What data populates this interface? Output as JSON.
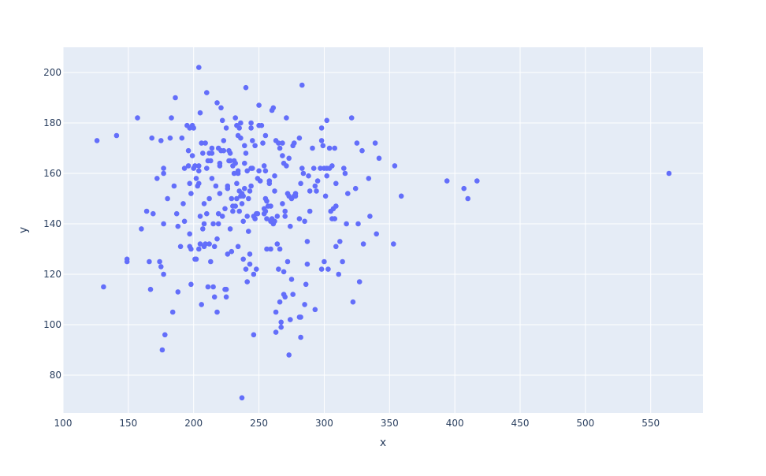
{
  "chart_data": {
    "type": "scatter",
    "xlabel": "x",
    "ylabel": "y",
    "xlim": [
      100,
      590
    ],
    "ylim": [
      65,
      210
    ],
    "x_ticks": [
      100,
      150,
      200,
      250,
      300,
      350,
      400,
      450,
      500,
      550
    ],
    "y_ticks": [
      80,
      100,
      120,
      140,
      160,
      180,
      200
    ],
    "grid": true,
    "colors": {
      "marker": "#636efa",
      "plot_bg": "#e5ecf6",
      "grid": "#ffffff",
      "text": "#2a3f5f"
    },
    "points": [
      [
        126,
        173
      ],
      [
        131,
        115
      ],
      [
        141,
        175
      ],
      [
        149,
        126
      ],
      [
        149,
        125
      ],
      [
        157,
        182
      ],
      [
        160,
        138
      ],
      [
        164,
        145
      ],
      [
        166,
        125
      ],
      [
        167,
        114
      ],
      [
        168,
        174
      ],
      [
        169,
        144
      ],
      [
        172,
        158
      ],
      [
        174,
        125
      ],
      [
        175,
        123
      ],
      [
        175,
        173
      ],
      [
        176,
        90
      ],
      [
        177,
        140
      ],
      [
        177,
        160
      ],
      [
        177,
        162
      ],
      [
        177,
        120
      ],
      [
        178,
        96
      ],
      [
        180,
        150
      ],
      [
        182,
        174
      ],
      [
        183,
        182
      ],
      [
        184,
        105
      ],
      [
        185,
        155
      ],
      [
        186,
        190
      ],
      [
        187,
        144
      ],
      [
        188,
        113
      ],
      [
        188,
        139
      ],
      [
        190,
        131
      ],
      [
        191,
        174
      ],
      [
        192,
        148
      ],
      [
        193,
        162
      ],
      [
        193,
        141
      ],
      [
        195,
        179
      ],
      [
        196,
        163
      ],
      [
        196,
        169
      ],
      [
        197,
        136
      ],
      [
        197,
        178
      ],
      [
        197,
        156
      ],
      [
        197,
        131
      ],
      [
        198,
        152
      ],
      [
        198,
        116
      ],
      [
        198,
        130
      ],
      [
        199,
        167
      ],
      [
        199,
        179
      ],
      [
        200,
        178
      ],
      [
        200,
        162
      ],
      [
        201,
        163
      ],
      [
        201,
        126
      ],
      [
        202,
        158
      ],
      [
        202,
        126
      ],
      [
        203,
        155
      ],
      [
        204,
        161
      ],
      [
        204,
        163
      ],
      [
        204,
        202
      ],
      [
        204,
        130
      ],
      [
        204,
        156
      ],
      [
        205,
        132
      ],
      [
        205,
        143
      ],
      [
        205,
        184
      ],
      [
        206,
        108
      ],
      [
        206,
        172
      ],
      [
        207,
        168
      ],
      [
        207,
        138
      ],
      [
        208,
        131
      ],
      [
        208,
        148
      ],
      [
        208,
        140
      ],
      [
        209,
        132
      ],
      [
        209,
        172
      ],
      [
        210,
        192
      ],
      [
        210,
        162
      ],
      [
        210,
        144
      ],
      [
        211,
        165
      ],
      [
        211,
        115
      ],
      [
        212,
        168
      ],
      [
        212,
        150
      ],
      [
        212,
        132
      ],
      [
        213,
        125
      ],
      [
        213,
        165
      ],
      [
        214,
        158
      ],
      [
        214,
        168
      ],
      [
        214,
        170
      ],
      [
        215,
        140
      ],
      [
        215,
        115
      ],
      [
        216,
        131
      ],
      [
        216,
        111
      ],
      [
        217,
        155
      ],
      [
        218,
        105
      ],
      [
        218,
        188
      ],
      [
        218,
        134
      ],
      [
        219,
        170
      ],
      [
        219,
        144
      ],
      [
        219,
        140
      ],
      [
        220,
        163
      ],
      [
        220,
        164
      ],
      [
        220,
        152
      ],
      [
        221,
        186
      ],
      [
        221,
        169
      ],
      [
        222,
        143
      ],
      [
        222,
        181
      ],
      [
        223,
        173
      ],
      [
        223,
        169
      ],
      [
        224,
        146
      ],
      [
        224,
        114
      ],
      [
        225,
        114
      ],
      [
        225,
        111
      ],
      [
        225,
        178
      ],
      [
        226,
        155
      ],
      [
        226,
        154
      ],
      [
        226,
        128
      ],
      [
        227,
        169
      ],
      [
        227,
        165
      ],
      [
        228,
        165
      ],
      [
        228,
        138
      ],
      [
        228,
        168
      ],
      [
        229,
        150
      ],
      [
        229,
        129
      ],
      [
        230,
        145
      ],
      [
        230,
        147
      ],
      [
        230,
        163
      ],
      [
        231,
        160
      ],
      [
        231,
        165
      ],
      [
        232,
        182
      ],
      [
        232,
        147
      ],
      [
        232,
        164
      ],
      [
        233,
        179
      ],
      [
        233,
        150
      ],
      [
        233,
        156
      ],
      [
        234,
        175
      ],
      [
        234,
        131
      ],
      [
        234,
        161
      ],
      [
        234,
        160
      ],
      [
        235,
        145
      ],
      [
        235,
        153
      ],
      [
        235,
        178
      ],
      [
        236,
        180
      ],
      [
        236,
        174
      ],
      [
        236,
        151
      ],
      [
        237,
        71
      ],
      [
        237,
        152
      ],
      [
        237,
        148
      ],
      [
        238,
        141
      ],
      [
        238,
        151
      ],
      [
        238,
        126
      ],
      [
        239,
        164
      ],
      [
        239,
        171
      ],
      [
        239,
        154
      ],
      [
        240,
        194
      ],
      [
        240,
        168
      ],
      [
        240,
        122
      ],
      [
        241,
        117
      ],
      [
        241,
        143
      ],
      [
        241,
        161
      ],
      [
        242,
        150
      ],
      [
        242,
        137
      ],
      [
        243,
        153
      ],
      [
        243,
        128
      ],
      [
        243,
        124
      ],
      [
        244,
        178
      ],
      [
        244,
        155
      ],
      [
        244,
        162
      ],
      [
        244,
        180
      ],
      [
        245,
        162
      ],
      [
        245,
        173
      ],
      [
        246,
        120
      ],
      [
        246,
        96
      ],
      [
        246,
        143
      ],
      [
        247,
        171
      ],
      [
        247,
        142
      ],
      [
        248,
        144
      ],
      [
        248,
        122
      ],
      [
        249,
        158
      ],
      [
        249,
        144
      ],
      [
        250,
        161
      ],
      [
        250,
        179
      ],
      [
        250,
        187
      ],
      [
        251,
        157
      ],
      [
        252,
        179
      ],
      [
        253,
        172
      ],
      [
        254,
        146
      ],
      [
        254,
        163
      ],
      [
        254,
        144
      ],
      [
        255,
        145
      ],
      [
        255,
        150
      ],
      [
        255,
        161
      ],
      [
        255,
        175
      ],
      [
        256,
        149
      ],
      [
        256,
        130
      ],
      [
        256,
        142
      ],
      [
        257,
        147
      ],
      [
        258,
        156
      ],
      [
        258,
        157
      ],
      [
        259,
        141
      ],
      [
        259,
        147
      ],
      [
        259,
        130
      ],
      [
        260,
        185
      ],
      [
        260,
        142
      ],
      [
        261,
        186
      ],
      [
        261,
        140
      ],
      [
        262,
        141
      ],
      [
        262,
        153
      ],
      [
        262,
        159
      ],
      [
        263,
        173
      ],
      [
        263,
        97
      ],
      [
        263,
        105
      ],
      [
        264,
        143
      ],
      [
        264,
        132
      ],
      [
        265,
        122
      ],
      [
        265,
        172
      ],
      [
        266,
        130
      ],
      [
        266,
        109
      ],
      [
        266,
        170
      ],
      [
        267,
        101
      ],
      [
        267,
        99
      ],
      [
        268,
        167
      ],
      [
        268,
        148
      ],
      [
        268,
        172
      ],
      [
        269,
        164
      ],
      [
        269,
        112
      ],
      [
        269,
        121
      ],
      [
        270,
        111
      ],
      [
        270,
        143
      ],
      [
        270,
        145
      ],
      [
        271,
        163
      ],
      [
        271,
        182
      ],
      [
        272,
        152
      ],
      [
        272,
        125
      ],
      [
        273,
        151
      ],
      [
        273,
        88
      ],
      [
        273,
        166
      ],
      [
        274,
        102
      ],
      [
        274,
        139
      ],
      [
        275,
        118
      ],
      [
        275,
        150
      ],
      [
        276,
        112
      ],
      [
        276,
        171
      ],
      [
        277,
        172
      ],
      [
        277,
        151
      ],
      [
        278,
        152
      ],
      [
        278,
        151
      ],
      [
        281,
        103
      ],
      [
        281,
        142
      ],
      [
        281,
        174
      ],
      [
        282,
        95
      ],
      [
        282,
        156
      ],
      [
        282,
        103
      ],
      [
        283,
        195
      ],
      [
        283,
        162
      ],
      [
        284,
        160
      ],
      [
        285,
        108
      ],
      [
        285,
        141
      ],
      [
        286,
        116
      ],
      [
        287,
        124
      ],
      [
        287,
        133
      ],
      [
        288,
        159
      ],
      [
        289,
        145
      ],
      [
        289,
        153
      ],
      [
        291,
        170
      ],
      [
        292,
        162
      ],
      [
        293,
        155
      ],
      [
        293,
        106
      ],
      [
        294,
        153
      ],
      [
        295,
        157
      ],
      [
        297,
        162
      ],
      [
        298,
        122
      ],
      [
        298,
        173
      ],
      [
        298,
        178
      ],
      [
        299,
        171
      ],
      [
        300,
        125
      ],
      [
        300,
        162
      ],
      [
        301,
        151
      ],
      [
        302,
        162
      ],
      [
        302,
        181
      ],
      [
        302,
        159
      ],
      [
        303,
        122
      ],
      [
        304,
        170
      ],
      [
        304,
        162
      ],
      [
        305,
        145
      ],
      [
        306,
        142
      ],
      [
        306,
        163
      ],
      [
        307,
        146
      ],
      [
        308,
        142
      ],
      [
        308,
        170
      ],
      [
        309,
        156
      ],
      [
        309,
        147
      ],
      [
        309,
        131
      ],
      [
        311,
        120
      ],
      [
        312,
        133
      ],
      [
        314,
        125
      ],
      [
        315,
        162
      ],
      [
        316,
        160
      ],
      [
        317,
        140
      ],
      [
        318,
        152
      ],
      [
        321,
        182
      ],
      [
        322,
        109
      ],
      [
        324,
        154
      ],
      [
        325,
        172
      ],
      [
        326,
        140
      ],
      [
        327,
        117
      ],
      [
        329,
        169
      ],
      [
        330,
        132
      ],
      [
        334,
        158
      ],
      [
        335,
        143
      ],
      [
        339,
        172
      ],
      [
        340,
        136
      ],
      [
        342,
        166
      ],
      [
        353,
        132
      ],
      [
        354,
        163
      ],
      [
        359,
        151
      ],
      [
        394,
        157
      ],
      [
        407,
        154
      ],
      [
        410,
        150
      ],
      [
        417,
        157
      ],
      [
        564,
        160
      ]
    ]
  }
}
